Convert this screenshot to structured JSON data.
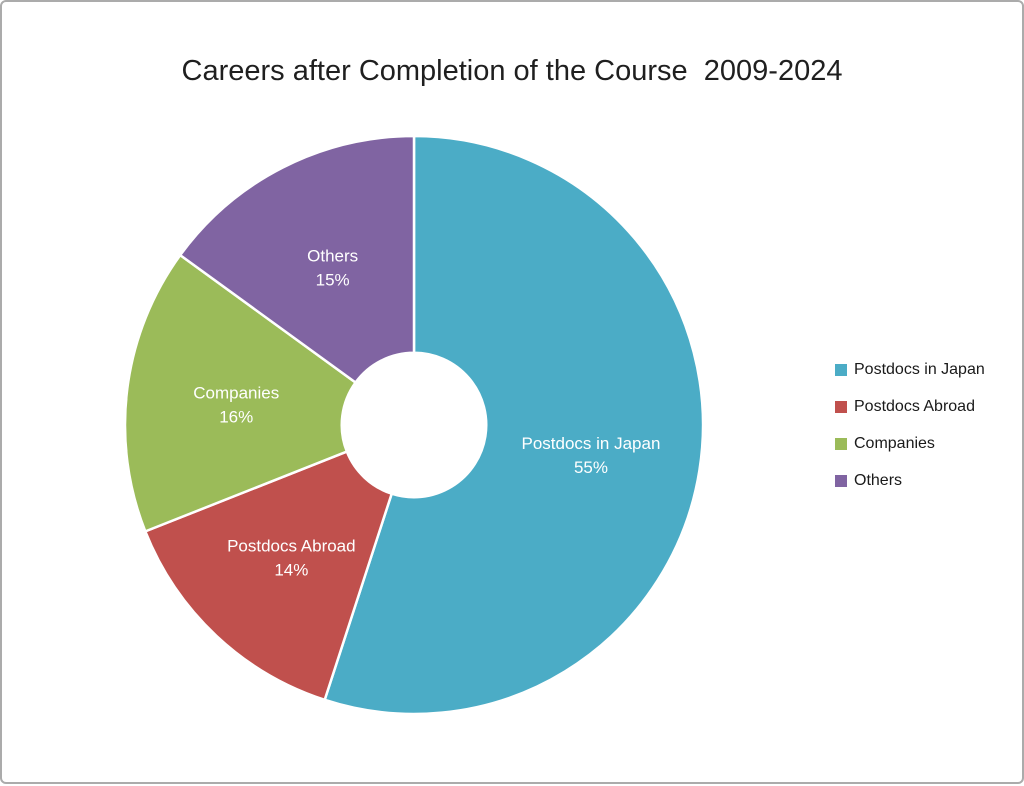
{
  "page": {
    "title": "Careers after Completion of the Course  2009-2024"
  },
  "chart_data": {
    "type": "pie",
    "subtype": "donut",
    "title": "Careers after Completion of the Course  2009-2024",
    "categories": [
      "Postdocs in Japan",
      "Postdocs Abroad",
      "Companies",
      "Others"
    ],
    "values": [
      55,
      14,
      16,
      15
    ],
    "unit": "%",
    "data_labels": [
      "Postdocs in Japan 55%",
      "Postdocs Abroad 14%",
      "Companies 16%",
      "Others 15%"
    ],
    "colors": [
      "#4BACC6",
      "#C0504D",
      "#9BBB59",
      "#8064A2"
    ],
    "start_angle_deg": 0,
    "direction": "clockwise",
    "inner_radius_ratio": 0.25,
    "slice_border_color": "#FFFFFF",
    "label_color": "#FFFFFF",
    "legend": {
      "position": "right",
      "entries": [
        "Postdocs in Japan",
        "Postdocs Abroad",
        "Companies",
        "Others"
      ]
    }
  }
}
